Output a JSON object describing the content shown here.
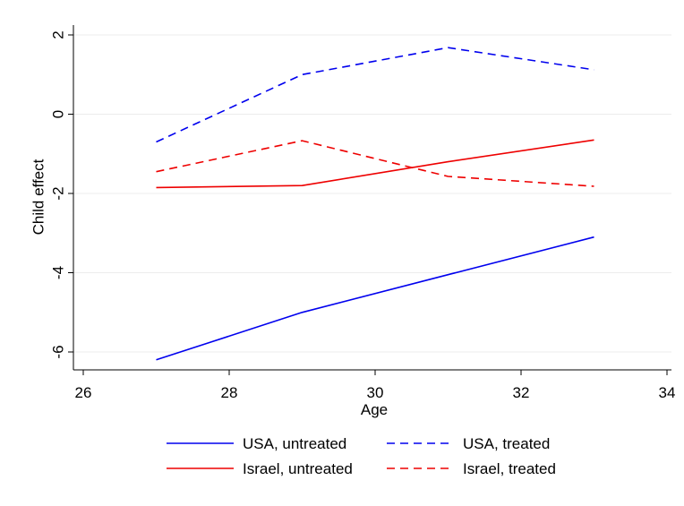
{
  "chart_data": {
    "type": "line",
    "title": "",
    "xlabel": "Age",
    "ylabel": "Child effect",
    "xlim": [
      26,
      34
    ],
    "ylim": [
      -6.3,
      2.3
    ],
    "xticks": [
      26,
      28,
      30,
      32,
      34
    ],
    "yticks": [
      2,
      0,
      -2,
      -4,
      -6
    ],
    "grid": "horizontal",
    "legend_position": "bottom",
    "series": [
      {
        "name": "USA, untreated",
        "color": "#0000ee",
        "dash": "solid",
        "x": [
          27,
          29,
          31,
          33
        ],
        "y": [
          -6.2,
          -5.0,
          -4.05,
          -3.1
        ]
      },
      {
        "name": "USA, treated",
        "color": "#0000ee",
        "dash": "dashed",
        "x": [
          27,
          29,
          31,
          33
        ],
        "y": [
          -0.7,
          1.0,
          1.68,
          1.12
        ]
      },
      {
        "name": "Israel, untreated",
        "color": "#ee0000",
        "dash": "solid",
        "x": [
          27,
          29,
          31,
          33
        ],
        "y": [
          -1.85,
          -1.8,
          -1.2,
          -0.65
        ]
      },
      {
        "name": "Israel, treated",
        "color": "#ee0000",
        "dash": "dashed",
        "x": [
          27,
          29,
          31,
          33
        ],
        "y": [
          -1.45,
          -0.67,
          -1.57,
          -1.82
        ]
      }
    ]
  }
}
